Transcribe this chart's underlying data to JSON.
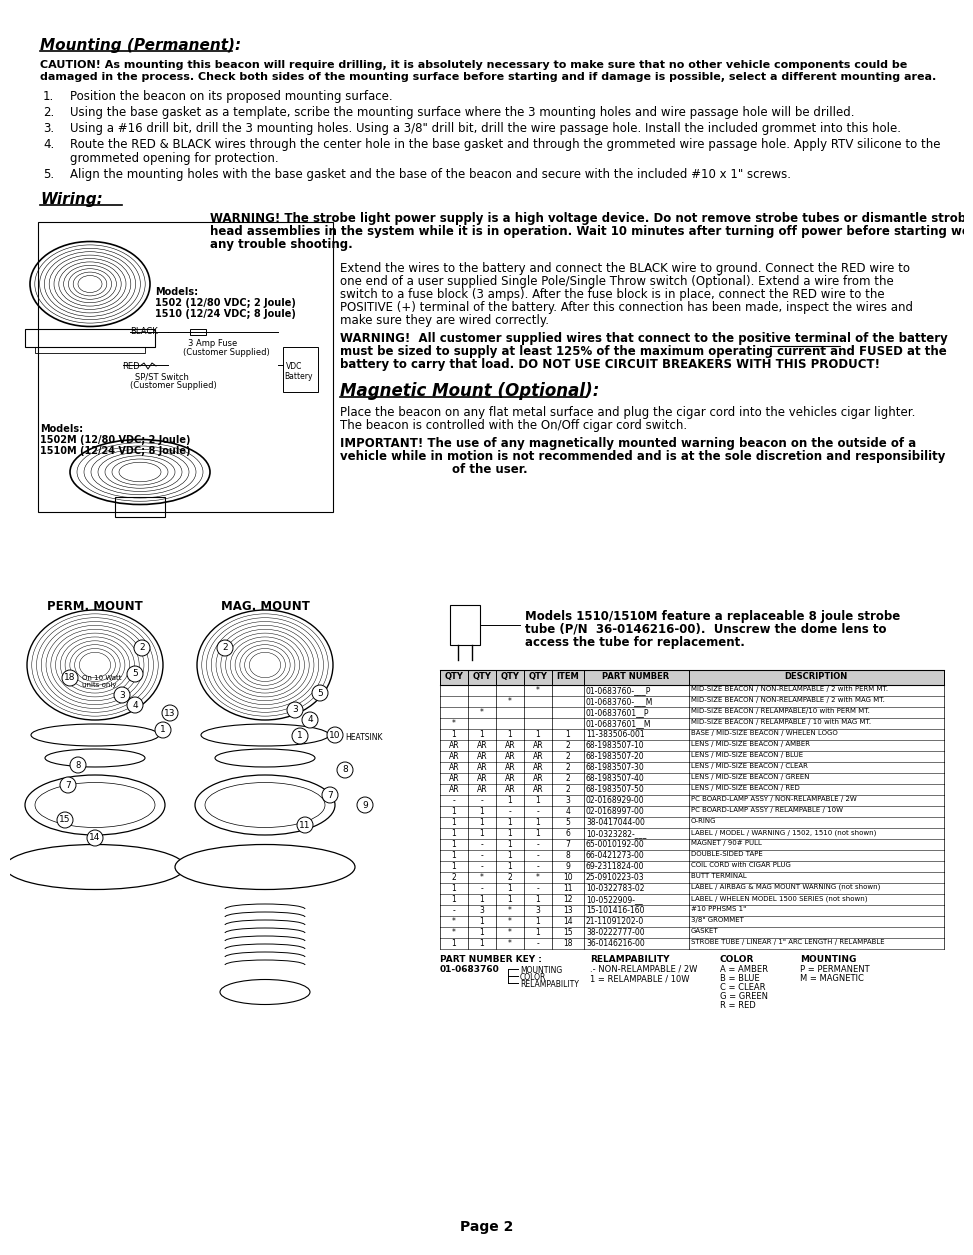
{
  "bg_color": "#ffffff",
  "title": "Page 2",
  "section1_title": "Mounting (Permanent):",
  "caution_line1": "CAUTION! As mounting this beacon will require drilling, it is absolutely necessary to make sure that no other vehicle components could be",
  "caution_line2": "damaged in the process. Check both sides of the mounting surface before starting and if damage is possible, select a different mounting area.",
  "steps": [
    "Position the beacon on its proposed mounting surface.",
    "Using the base gasket as a template, scribe the mounting surface where the 3 mounting holes and wire passage hole will be drilled.",
    "Using a #16 drill bit, drill the 3 mounting holes. Using a 3/8\" drill bit, drill the wire passage hole. Install the included grommet into this hole.",
    [
      "Route the RED & BLACK wires through the center hole in the base gasket and through the grommeted wire passage hole. Apply RTV silicone to the",
      "grommeted opening for protection."
    ],
    "Align the mounting holes with the base gasket and the base of the beacon and secure with the included #10 x 1\" screws."
  ],
  "section2_title": "Wiring:",
  "warn1_line1": "WARNING! The strobe light power supply is a high voltage device. Do not remove strobe tubes or dismantle strobe light",
  "warn1_line2": "head assemblies in the system while it is in operation. Wait 10 minutes after turning off power before starting work or",
  "warn1_line3": "any trouble shooting.",
  "models_top_line1": "Models:",
  "models_top_line2": "1502 (12/80 VDC; 2 Joule)",
  "models_top_line3": "1510 (12/24 VDC; 8 Joule)",
  "wire_label_black": "BLACK",
  "wire_label_fuse": "3 Amp Fuse",
  "wire_label_fuse2": "(Customer Supplied)",
  "wire_label_red": "RED",
  "wire_label_switch": "SP/ST Switch",
  "wire_label_switch2": "(Customer Supplied)",
  "wire_label_vdc": "VDC",
  "wire_label_battery": "Battery",
  "models_bot_line1": "Models:",
  "models_bot_line2": "1502M (12/80 VDC; 2 Joule)",
  "models_bot_line3": "1510M (12/24 VDC; 8 Joule)",
  "wiring_para_lines": [
    "Extend the wires to the battery and connect the BLACK wire to ground. Connect the RED wire to",
    "one end of a user supplied Single Pole/Single Throw switch (Optional). Extend a wire from the",
    "switch to a fuse block (3 amps). After the fuse block is in place, connect the RED wire to the",
    "POSITIVE (+) terminal of the battery. After this connection has been made, inspect the wires and",
    "make sure they are wired correctly."
  ],
  "warn2_line1": "WARNING!  All customer supplied wires that connect to the positive terminal of the battery",
  "warn2_line2": "must be sized to supply at least 125% of the maximum operating current and FUSED at the",
  "warn2_line3": "battery to carry that load. DO NOT USE CIRCUIT BREAKERS WITH THIS PRODUCT!",
  "section3_title": "Magnetic Mount (Optional):",
  "mag_line1": "Place the beacon on any flat metal surface and plug the cigar cord into the vehicles cigar lighter.",
  "mag_line2": "The beacon is controlled with the On/Off cigar cord switch.",
  "imp_line1": "IMPORTANT! The use of any magnetically mounted warning beacon on the outside of a",
  "imp_line2": "vehicle while in motion is not recommended and is at the sole discretion and responsibility",
  "imp_line3": "of the user.",
  "perm_label": "PERM. MOUNT",
  "mag_label": "MAG. MOUNT",
  "heatsink_label": "HEATSINK",
  "on10watt": "On 10 Watt\nunits only",
  "tube_note_line1": "Models 1510/1510M feature a replaceable 8 joule strobe",
  "tube_note_line2": "tube (P/N  36-0146216-00).  Unscrew the dome lens to",
  "tube_note_line3": "access the tube for replacement.",
  "table_headers_row1": [
    "QTY",
    "QTY",
    "QTY",
    "QTY",
    "ITEM",
    "PART NUMBER",
    "DESCRIPTION"
  ],
  "table_rows": [
    [
      "",
      "",
      "",
      "*",
      "",
      "01-0683760-___P",
      "MID-SIZE BEACON / NON-RELAMPABLE / 2 with PERM MT."
    ],
    [
      "",
      "",
      "*",
      "",
      "",
      "01-0683760-___M",
      "MID-SIZE BEACON / NON-RELAMPABLE / 2 with MAG MT."
    ],
    [
      "",
      "*",
      "",
      "",
      "",
      "01-06837601__P",
      "MID-SIZE BEACON / RELAMPABLE/10 with PERM MT."
    ],
    [
      "*",
      "",
      "",
      "",
      "",
      "01-06837601__M",
      "MID-SIZE BEACON / RELAMPABLE / 10 with MAG MT."
    ],
    [
      "1",
      "1",
      "1",
      "1",
      "1",
      "11-383506-001",
      "BASE / MID-SIZE BEACON / WHELEN LOGO"
    ],
    [
      "AR",
      "AR",
      "AR",
      "AR",
      "2",
      "68-1983507-10",
      "LENS / MID-SIZE BEACON / AMBER"
    ],
    [
      "AR",
      "AR",
      "AR",
      "AR",
      "2",
      "68-1983507-20",
      "LENS / MID-SIZE BEACON / BLUE"
    ],
    [
      "AR",
      "AR",
      "AR",
      "AR",
      "2",
      "68-1983507-30",
      "LENS / MID-SIZE BEACON / CLEAR"
    ],
    [
      "AR",
      "AR",
      "AR",
      "AR",
      "2",
      "68-1983507-40",
      "LENS / MID-SIZE BEACON / GREEN"
    ],
    [
      "AR",
      "AR",
      "AR",
      "AR",
      "2",
      "68-1983507-50",
      "LENS / MID-SIZE BEACON / RED"
    ],
    [
      "-",
      "-",
      "1",
      "1",
      "3",
      "02-0168929-00",
      "PC BOARD-LAMP ASSY / NON-RELAMPABLE / 2W"
    ],
    [
      "1",
      "1",
      "-",
      "-",
      "4",
      "02-0168997-00",
      "PC BOARD-LAMP ASSY / RELAMPABLE / 10W"
    ],
    [
      "1",
      "1",
      "1",
      "1",
      "5",
      "38-0417044-00",
      "O-RING"
    ],
    [
      "1",
      "1",
      "1",
      "1",
      "6",
      "10-0323282-___",
      "LABEL / MODEL / WARNING / 1502, 1510 (not shown)"
    ],
    [
      "1",
      "-",
      "1",
      "-",
      "7",
      "65-0010192-00",
      "MAGNET / 90# PULL"
    ],
    [
      "1",
      "-",
      "1",
      "-",
      "8",
      "66-0421273-00",
      "DOUBLE-SIDED TAPE"
    ],
    [
      "1",
      "-",
      "1",
      "-",
      "9",
      "69-2311824-00",
      "COIL CORD with CIGAR PLUG"
    ],
    [
      "2",
      "*",
      "2",
      "*",
      "10",
      "25-0910223-03",
      "BUTT TERMINAL"
    ],
    [
      "1",
      "-",
      "1",
      "-",
      "11",
      "10-0322783-02",
      "LABEL / AIRBAG & MAG MOUNT WARNING (not shown)"
    ],
    [
      "1",
      "1",
      "1",
      "1",
      "12",
      "10-0522909-__",
      "LABEL / WHELEN MODEL 1500 SERIES (not shown)"
    ],
    [
      "-",
      "3",
      "*",
      "3",
      "13",
      "15-101416-160",
      "#10 PPHSMS 1\""
    ],
    [
      "*",
      "1",
      "*",
      "1",
      "14",
      "21-11091202-0",
      "3/8\" GROMMET"
    ],
    [
      "*",
      "1",
      "*",
      "1",
      "15",
      "38-0222777-00",
      "GASKET"
    ],
    [
      "1",
      "1",
      "*",
      "-",
      "18",
      "36-0146216-00",
      "STROBE TUBE / LINEAR / 1\" ARC LENGTH / RELAMPABLE"
    ]
  ],
  "key_pn": "PART NUMBER KEY :",
  "key_pn2": "01-0683760",
  "key_mounting_label": "MOUNTING",
  "key_color_label": "COLOR",
  "key_relamp_label": "RELAMPABILITY",
  "key_relamp_vals": [
    ".- NON-RELAMPABLE / 2W",
    "1 = RELAMPABLE / 10W"
  ],
  "key_color_vals": [
    "A = AMBER",
    "B = BLUE",
    "C = CLEAR",
    "G = GREEN",
    "R = RED"
  ],
  "key_mount_vals": [
    "P = PERMANENT",
    "M = MAGNETIC"
  ]
}
